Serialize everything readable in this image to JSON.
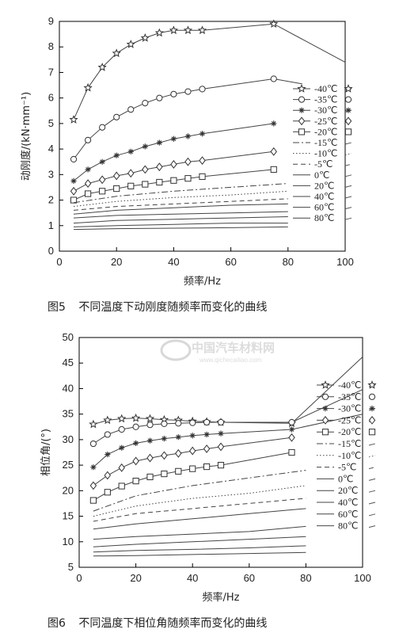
{
  "captions": {
    "fig5_no": "图5",
    "fig5_text": "不同温度下动刚度随频率而变化的曲线",
    "fig6_no": "图6",
    "fig6_text": "不同温度下相位角随频率而变化的曲线"
  },
  "watermark": {
    "name": "中国汽车材料网",
    "url": "www.qichecailiao.com"
  },
  "chart_data": [
    {
      "id": "fig5",
      "type": "line",
      "title": "",
      "xlabel": "频率/Hz",
      "ylabel": "动刚度/(kN·mm⁻¹)",
      "xlim": [
        0,
        100
      ],
      "ylim": [
        0,
        9
      ],
      "xticks": [
        0,
        20,
        40,
        60,
        80,
        100
      ],
      "yticks": [
        0,
        1,
        2,
        3,
        4,
        5,
        6,
        7,
        8,
        9
      ],
      "grid": false,
      "legend": "right",
      "series": [
        {
          "name": "-40℃",
          "marker": "star",
          "dash": "solid",
          "x": [
            5,
            10,
            15,
            20,
            25,
            30,
            35,
            40,
            45,
            50,
            75,
            100
          ],
          "y": [
            5.15,
            6.4,
            7.2,
            7.75,
            8.1,
            8.35,
            8.55,
            8.65,
            8.65,
            8.65,
            8.9,
            7.4
          ]
        },
        {
          "name": "-35℃",
          "marker": "circle",
          "dash": "solid",
          "x": [
            5,
            10,
            15,
            20,
            25,
            30,
            35,
            40,
            45,
            50,
            75,
            85
          ],
          "y": [
            3.6,
            4.35,
            4.85,
            5.25,
            5.55,
            5.8,
            6.0,
            6.15,
            6.25,
            6.35,
            6.75,
            6.55
          ]
        },
        {
          "name": "-30℃",
          "marker": "asterisk",
          "dash": "solid",
          "x": [
            5,
            10,
            15,
            20,
            25,
            30,
            35,
            40,
            45,
            50,
            75
          ],
          "y": [
            2.75,
            3.2,
            3.5,
            3.75,
            3.9,
            4.1,
            4.25,
            4.4,
            4.5,
            4.6,
            5.0
          ]
        },
        {
          "name": "-25℃",
          "marker": "diamond",
          "dash": "solid",
          "x": [
            5,
            10,
            15,
            20,
            25,
            30,
            35,
            40,
            45,
            50,
            75
          ],
          "y": [
            2.35,
            2.65,
            2.8,
            2.95,
            3.05,
            3.2,
            3.3,
            3.4,
            3.5,
            3.55,
            3.9
          ]
        },
        {
          "name": "-20℃",
          "marker": "square",
          "dash": "solid",
          "x": [
            5,
            10,
            15,
            20,
            25,
            30,
            35,
            40,
            45,
            50,
            75
          ],
          "y": [
            2.0,
            2.25,
            2.35,
            2.45,
            2.55,
            2.62,
            2.7,
            2.77,
            2.85,
            2.92,
            3.2
          ]
        },
        {
          "name": "-15℃",
          "marker": "none",
          "dash": "dashdot",
          "x": [
            5,
            20,
            40,
            60,
            80
          ],
          "y": [
            1.9,
            2.15,
            2.35,
            2.5,
            2.65
          ]
        },
        {
          "name": "-10℃",
          "marker": "none",
          "dash": "dotted",
          "x": [
            5,
            20,
            40,
            60,
            80
          ],
          "y": [
            1.75,
            1.95,
            2.1,
            2.2,
            2.35
          ]
        },
        {
          "name": "-5℃",
          "marker": "none",
          "dash": "dashed",
          "x": [
            5,
            20,
            40,
            60,
            80
          ],
          "y": [
            1.6,
            1.75,
            1.85,
            1.95,
            2.05
          ]
        },
        {
          "name": "0℃",
          "marker": "none",
          "dash": "solid",
          "x": [
            5,
            20,
            40,
            60,
            80
          ],
          "y": [
            1.45,
            1.6,
            1.7,
            1.8,
            1.85
          ]
        },
        {
          "name": "20℃",
          "marker": "none",
          "dash": "solid",
          "x": [
            5,
            20,
            40,
            60,
            80
          ],
          "y": [
            1.3,
            1.4,
            1.45,
            1.5,
            1.55
          ]
        },
        {
          "name": "40℃",
          "marker": "none",
          "dash": "solid",
          "x": [
            5,
            20,
            40,
            60,
            80
          ],
          "y": [
            1.1,
            1.2,
            1.25,
            1.3,
            1.35
          ]
        },
        {
          "name": "60℃",
          "marker": "none",
          "dash": "solid",
          "x": [
            5,
            20,
            40,
            60,
            80
          ],
          "y": [
            0.95,
            1.0,
            1.05,
            1.1,
            1.1
          ]
        },
        {
          "name": "80℃",
          "marker": "none",
          "dash": "solid",
          "x": [
            5,
            20,
            40,
            60,
            80
          ],
          "y": [
            0.85,
            0.88,
            0.9,
            0.92,
            0.95
          ]
        }
      ]
    },
    {
      "id": "fig6",
      "type": "line",
      "title": "",
      "xlabel": "频率/Hz",
      "ylabel": "相位角/(°)",
      "xlim": [
        0,
        100
      ],
      "ylim": [
        5,
        50
      ],
      "xticks": [
        0,
        20,
        40,
        60,
        80,
        100
      ],
      "yticks": [
        5,
        10,
        15,
        20,
        25,
        30,
        35,
        40,
        45,
        50
      ],
      "grid": false,
      "legend": "right",
      "series": [
        {
          "name": "-40℃",
          "marker": "star",
          "dash": "solid",
          "x": [
            5,
            10,
            15,
            20,
            25,
            30,
            35,
            40,
            45,
            50,
            75,
            100
          ],
          "y": [
            33.0,
            33.8,
            34.1,
            34.2,
            34.1,
            33.9,
            33.8,
            33.6,
            33.5,
            33.4,
            33.2,
            46.2
          ]
        },
        {
          "name": "-35℃",
          "marker": "circle",
          "dash": "solid",
          "x": [
            5,
            10,
            15,
            20,
            25,
            30,
            35,
            40,
            45,
            50,
            75,
            100
          ],
          "y": [
            29.2,
            31.0,
            32.0,
            32.5,
            32.9,
            33.1,
            33.2,
            33.3,
            33.4,
            33.4,
            33.4,
            39.8
          ]
        },
        {
          "name": "-30℃",
          "marker": "asterisk",
          "dash": "solid",
          "x": [
            5,
            10,
            15,
            20,
            25,
            30,
            35,
            40,
            45,
            50,
            75,
            100
          ],
          "y": [
            24.6,
            27.1,
            28.4,
            29.3,
            29.8,
            30.2,
            30.5,
            30.8,
            31.0,
            31.2,
            32.0,
            35.0
          ]
        },
        {
          "name": "-25℃",
          "marker": "diamond",
          "dash": "solid",
          "x": [
            5,
            10,
            15,
            20,
            25,
            30,
            35,
            40,
            45,
            50,
            75
          ],
          "y": [
            21.0,
            23.0,
            24.5,
            25.8,
            26.4,
            26.9,
            27.3,
            27.8,
            28.2,
            28.6,
            30.4
          ]
        },
        {
          "name": "-20℃",
          "marker": "square",
          "dash": "solid",
          "x": [
            5,
            10,
            15,
            20,
            25,
            30,
            35,
            40,
            45,
            50,
            75
          ],
          "y": [
            18.1,
            19.7,
            20.9,
            21.9,
            22.7,
            23.3,
            23.8,
            24.3,
            24.7,
            25.0,
            27.5
          ]
        },
        {
          "name": "-15℃",
          "marker": "none",
          "dash": "dashdot",
          "x": [
            5,
            20,
            40,
            60,
            80
          ],
          "y": [
            16.0,
            19.0,
            21.0,
            22.5,
            24.0
          ]
        },
        {
          "name": "-10℃",
          "marker": "none",
          "dash": "dotted",
          "x": [
            5,
            20,
            40,
            60,
            80
          ],
          "y": [
            15.0,
            17.0,
            18.5,
            19.5,
            21.0
          ]
        },
        {
          "name": "-5℃",
          "marker": "none",
          "dash": "dashed",
          "x": [
            5,
            20,
            40,
            60,
            80
          ],
          "y": [
            14.0,
            15.5,
            16.5,
            17.5,
            18.5
          ]
        },
        {
          "name": "0℃",
          "marker": "none",
          "dash": "solid",
          "x": [
            5,
            20,
            40,
            60,
            80
          ],
          "y": [
            12.5,
            13.5,
            14.5,
            15.5,
            16.5
          ]
        },
        {
          "name": "20℃",
          "marker": "none",
          "dash": "solid",
          "x": [
            5,
            20,
            40,
            60,
            80
          ],
          "y": [
            10.5,
            11.0,
            11.5,
            12.0,
            13.0
          ]
        },
        {
          "name": "40℃",
          "marker": "none",
          "dash": "solid",
          "x": [
            5,
            20,
            40,
            60,
            80
          ],
          "y": [
            9.0,
            9.5,
            10.0,
            10.5,
            11.0
          ]
        },
        {
          "name": "60℃",
          "marker": "none",
          "dash": "solid",
          "x": [
            5,
            20,
            40,
            60,
            80
          ],
          "y": [
            8.0,
            8.3,
            8.5,
            8.8,
            9.2
          ]
        },
        {
          "name": "80℃",
          "marker": "none",
          "dash": "solid",
          "x": [
            5,
            20,
            40,
            60,
            80
          ],
          "y": [
            7.2,
            7.3,
            7.5,
            7.7,
            7.9
          ]
        }
      ]
    }
  ]
}
